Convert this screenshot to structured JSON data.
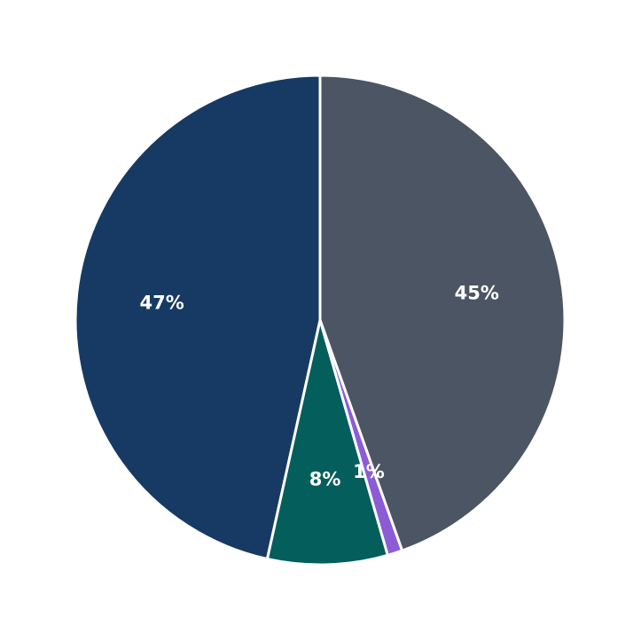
{
  "chart_data": {
    "type": "pie",
    "title": "",
    "start_angle_deg": 90,
    "direction": "clockwise",
    "slices": [
      {
        "label_text": "45%",
        "value": 45,
        "color": "#4b5563"
      },
      {
        "label_text": "1%",
        "value": 1,
        "color": "#8b5cd6"
      },
      {
        "label_text": "8%",
        "value": 8,
        "color": "#045e5b"
      },
      {
        "label_text": "47%",
        "value": 47,
        "color": "#163a63"
      }
    ]
  }
}
